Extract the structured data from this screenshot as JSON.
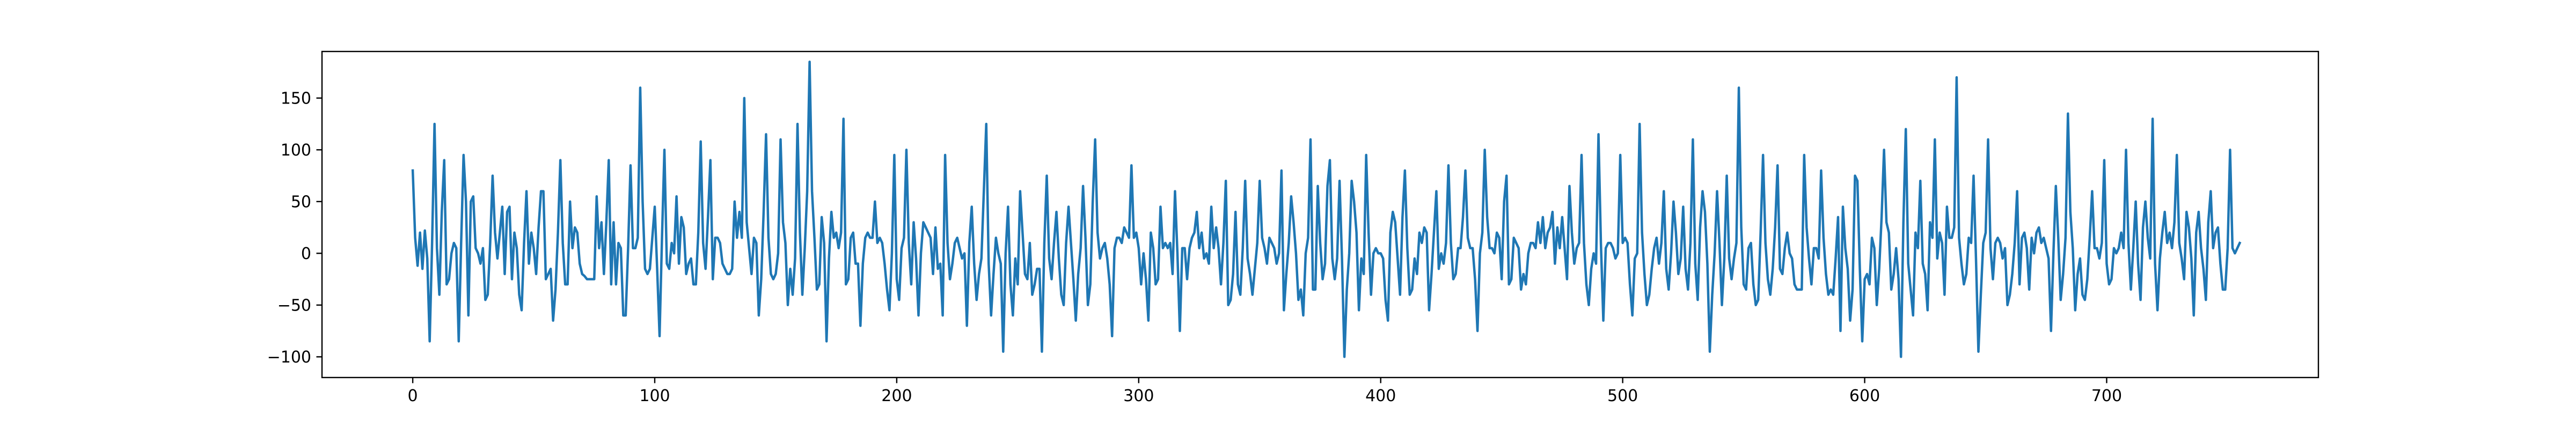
{
  "chart_data": {
    "type": "line",
    "title": "",
    "xlabel": "",
    "ylabel": "",
    "xlim": [
      -37.5,
      787.5
    ],
    "ylim": [
      -120,
      195
    ],
    "grid": false,
    "legend": "none",
    "xticks": [
      0,
      100,
      200,
      300,
      400,
      500,
      600,
      700
    ],
    "yticks": [
      -100,
      -50,
      0,
      50,
      100,
      150
    ],
    "series": [
      {
        "color": "#1f77b4",
        "x_start": 0,
        "x_step": 1,
        "y": [
          80,
          15,
          -12,
          20,
          -15,
          22,
          -5,
          -85,
          10,
          125,
          5,
          -40,
          40,
          90,
          -30,
          -25,
          0,
          10,
          5,
          -85,
          10,
          95,
          50,
          -60,
          50,
          55,
          5,
          0,
          -10,
          5,
          -45,
          -40,
          10,
          75,
          20,
          -5,
          20,
          45,
          -20,
          40,
          45,
          -25,
          20,
          5,
          -40,
          -55,
          10,
          60,
          -10,
          20,
          5,
          -20,
          25,
          60,
          60,
          -25,
          -20,
          -15,
          -65,
          -35,
          20,
          90,
          10,
          -30,
          -30,
          50,
          5,
          25,
          20,
          -10,
          -20,
          -22,
          -25,
          -25,
          -25,
          -25,
          55,
          5,
          30,
          -20,
          30,
          90,
          -30,
          30,
          -30,
          10,
          5,
          -60,
          -60,
          5,
          85,
          5,
          5,
          15,
          160,
          50,
          -15,
          -20,
          -15,
          15,
          45,
          -15,
          -80,
          15,
          100,
          -10,
          -15,
          10,
          0,
          55,
          -10,
          35,
          25,
          -20,
          -10,
          -5,
          -30,
          -30,
          20,
          108,
          10,
          -15,
          35,
          90,
          -25,
          15,
          15,
          10,
          -10,
          -15,
          -20,
          -20,
          -15,
          50,
          15,
          40,
          15,
          150,
          30,
          5,
          -20,
          15,
          10,
          -60,
          -25,
          40,
          115,
          15,
          -20,
          -25,
          -20,
          0,
          110,
          30,
          10,
          -50,
          -15,
          -40,
          -5,
          125,
          20,
          -40,
          5,
          60,
          185,
          60,
          15,
          -35,
          -30,
          35,
          10,
          -85,
          -5,
          40,
          15,
          20,
          5,
          20,
          130,
          -30,
          -25,
          15,
          20,
          -10,
          -10,
          -70,
          -10,
          15,
          20,
          15,
          15,
          50,
          10,
          15,
          10,
          -10,
          -35,
          -55,
          0,
          95,
          -25,
          -45,
          5,
          15,
          100,
          10,
          -30,
          30,
          -5,
          -60,
          0,
          30,
          25,
          20,
          15,
          -20,
          25,
          -15,
          -10,
          -60,
          95,
          10,
          -25,
          -10,
          10,
          15,
          5,
          -5,
          0,
          -70,
          10,
          45,
          -10,
          -45,
          -20,
          -5,
          60,
          125,
          -10,
          -60,
          -20,
          15,
          0,
          -10,
          -95,
          0,
          45,
          -30,
          -60,
          -5,
          -30,
          60,
          20,
          -20,
          -25,
          10,
          -40,
          -30,
          -15,
          -15,
          -95,
          10,
          75,
          -5,
          -25,
          10,
          40,
          -5,
          -40,
          -50,
          10,
          45,
          10,
          -25,
          -65,
          -20,
          5,
          65,
          15,
          -50,
          -30,
          50,
          110,
          20,
          -5,
          5,
          10,
          -5,
          -30,
          -80,
          5,
          15,
          15,
          10,
          25,
          20,
          15,
          85,
          15,
          20,
          5,
          -30,
          0,
          -25,
          -65,
          20,
          5,
          -30,
          -25,
          45,
          5,
          10,
          5,
          10,
          -20,
          60,
          0,
          -75,
          5,
          5,
          -25,
          5,
          15,
          20,
          40,
          5,
          20,
          -5,
          0,
          -10,
          45,
          5,
          25,
          5,
          -30,
          10,
          70,
          -50,
          -45,
          -20,
          40,
          -30,
          -40,
          5,
          70,
          -5,
          -20,
          -40,
          -15,
          10,
          70,
          15,
          5,
          -10,
          15,
          10,
          5,
          -10,
          0,
          80,
          -55,
          -20,
          10,
          55,
          30,
          0,
          -45,
          -35,
          -60,
          0,
          15,
          110,
          -35,
          -35,
          65,
          10,
          -25,
          -10,
          65,
          90,
          -5,
          -25,
          -5,
          70,
          -5,
          -100,
          -35,
          0,
          70,
          50,
          20,
          -55,
          -5,
          -20,
          95,
          20,
          -40,
          0,
          5,
          0,
          0,
          -5,
          -45,
          -65,
          20,
          40,
          30,
          -5,
          -40,
          35,
          80,
          5,
          -40,
          -35,
          -5,
          -20,
          20,
          10,
          25,
          20,
          -55,
          -20,
          20,
          60,
          -15,
          0,
          -10,
          10,
          85,
          10,
          -25,
          -20,
          5,
          5,
          35,
          80,
          15,
          5,
          5,
          -25,
          -75,
          0,
          20,
          100,
          35,
          5,
          5,
          0,
          20,
          15,
          -25,
          50,
          75,
          -30,
          -25,
          15,
          10,
          5,
          -35,
          -20,
          -30,
          0,
          10,
          10,
          5,
          30,
          10,
          35,
          5,
          20,
          25,
          40,
          -10,
          25,
          5,
          35,
          5,
          -25,
          65,
          20,
          -10,
          5,
          10,
          95,
          10,
          -30,
          -50,
          -15,
          0,
          -10,
          115,
          10,
          -65,
          5,
          10,
          10,
          5,
          -5,
          0,
          95,
          10,
          15,
          10,
          -30,
          -60,
          -5,
          0,
          125,
          20,
          -20,
          -50,
          -40,
          -15,
          5,
          15,
          -10,
          10,
          60,
          -15,
          -35,
          0,
          50,
          20,
          -20,
          -5,
          45,
          -15,
          -35,
          10,
          110,
          -10,
          -45,
          25,
          60,
          40,
          -10,
          -95,
          -40,
          0,
          60,
          10,
          -50,
          -5,
          75,
          -5,
          -25,
          -5,
          10,
          160,
          25,
          -30,
          -35,
          5,
          10,
          -30,
          -50,
          -45,
          20,
          95,
          10,
          -25,
          -40,
          -15,
          25,
          85,
          -15,
          -20,
          5,
          20,
          0,
          -5,
          -30,
          -35,
          -35,
          -35,
          95,
          25,
          -5,
          -30,
          5,
          5,
          -5,
          80,
          15,
          -20,
          -40,
          -35,
          -40,
          -5,
          35,
          -75,
          45,
          5,
          -15,
          -65,
          -35,
          75,
          70,
          -15,
          -85,
          -25,
          -20,
          -30,
          15,
          5,
          -50,
          -15,
          35,
          100,
          30,
          20,
          -35,
          -20,
          5,
          -25,
          -100,
          30,
          120,
          -10,
          -35,
          -60,
          20,
          5,
          70,
          -10,
          -20,
          -55,
          30,
          15,
          110,
          -5,
          20,
          10,
          -40,
          45,
          15,
          15,
          25,
          170,
          15,
          -10,
          -30,
          -20,
          15,
          10,
          75,
          -5,
          -95,
          -40,
          10,
          20,
          110,
          5,
          -25,
          10,
          15,
          10,
          -5,
          5,
          -50,
          -40,
          -20,
          10,
          60,
          -30,
          15,
          20,
          5,
          -35,
          15,
          0,
          20,
          25,
          10,
          15,
          5,
          -5,
          -75,
          0,
          65,
          15,
          -45,
          -20,
          15,
          135,
          40,
          5,
          -55,
          -20,
          -5,
          -40,
          -45,
          -25,
          15,
          60,
          5,
          5,
          -5,
          10,
          90,
          -10,
          -30,
          -25,
          5,
          0,
          5,
          20,
          5,
          100,
          10,
          -35,
          5,
          50,
          -10,
          -45,
          25,
          50,
          15,
          -5,
          130,
          -10,
          -55,
          -5,
          20,
          40,
          10,
          20,
          5,
          30,
          95,
          10,
          -5,
          -25,
          40,
          25,
          -5,
          -60,
          20,
          40,
          5,
          -15,
          -45,
          30,
          60,
          5,
          20,
          25,
          -10,
          -35,
          -35,
          5,
          100,
          5,
          0,
          5,
          10
        ]
      }
    ]
  }
}
